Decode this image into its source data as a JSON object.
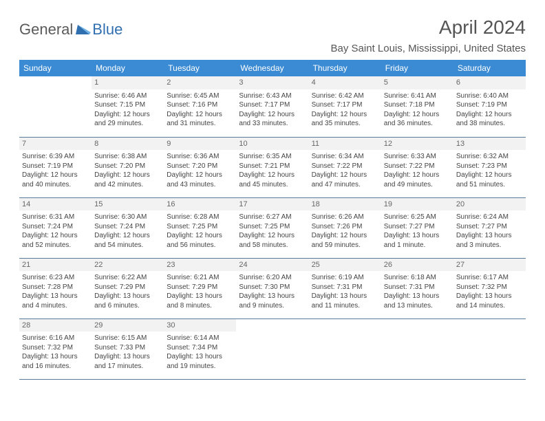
{
  "logo": {
    "part1": "General",
    "part2": "Blue"
  },
  "title": "April 2024",
  "location": "Bay Saint Louis, Mississippi, United States",
  "colors": {
    "header_bg": "#3b8bd4",
    "header_text": "#ffffff",
    "daynum_bg": "#f2f2f2",
    "cell_border": "#5a7a9a",
    "body_text": "#444444",
    "logo_gray": "#5a5a5a",
    "logo_blue": "#2f6fb0"
  },
  "weekdays": [
    "Sunday",
    "Monday",
    "Tuesday",
    "Wednesday",
    "Thursday",
    "Friday",
    "Saturday"
  ],
  "weeks": [
    [
      null,
      {
        "n": "1",
        "sr": "Sunrise: 6:46 AM",
        "ss": "Sunset: 7:15 PM",
        "d1": "Daylight: 12 hours",
        "d2": "and 29 minutes."
      },
      {
        "n": "2",
        "sr": "Sunrise: 6:45 AM",
        "ss": "Sunset: 7:16 PM",
        "d1": "Daylight: 12 hours",
        "d2": "and 31 minutes."
      },
      {
        "n": "3",
        "sr": "Sunrise: 6:43 AM",
        "ss": "Sunset: 7:17 PM",
        "d1": "Daylight: 12 hours",
        "d2": "and 33 minutes."
      },
      {
        "n": "4",
        "sr": "Sunrise: 6:42 AM",
        "ss": "Sunset: 7:17 PM",
        "d1": "Daylight: 12 hours",
        "d2": "and 35 minutes."
      },
      {
        "n": "5",
        "sr": "Sunrise: 6:41 AM",
        "ss": "Sunset: 7:18 PM",
        "d1": "Daylight: 12 hours",
        "d2": "and 36 minutes."
      },
      {
        "n": "6",
        "sr": "Sunrise: 6:40 AM",
        "ss": "Sunset: 7:19 PM",
        "d1": "Daylight: 12 hours",
        "d2": "and 38 minutes."
      }
    ],
    [
      {
        "n": "7",
        "sr": "Sunrise: 6:39 AM",
        "ss": "Sunset: 7:19 PM",
        "d1": "Daylight: 12 hours",
        "d2": "and 40 minutes."
      },
      {
        "n": "8",
        "sr": "Sunrise: 6:38 AM",
        "ss": "Sunset: 7:20 PM",
        "d1": "Daylight: 12 hours",
        "d2": "and 42 minutes."
      },
      {
        "n": "9",
        "sr": "Sunrise: 6:36 AM",
        "ss": "Sunset: 7:20 PM",
        "d1": "Daylight: 12 hours",
        "d2": "and 43 minutes."
      },
      {
        "n": "10",
        "sr": "Sunrise: 6:35 AM",
        "ss": "Sunset: 7:21 PM",
        "d1": "Daylight: 12 hours",
        "d2": "and 45 minutes."
      },
      {
        "n": "11",
        "sr": "Sunrise: 6:34 AM",
        "ss": "Sunset: 7:22 PM",
        "d1": "Daylight: 12 hours",
        "d2": "and 47 minutes."
      },
      {
        "n": "12",
        "sr": "Sunrise: 6:33 AM",
        "ss": "Sunset: 7:22 PM",
        "d1": "Daylight: 12 hours",
        "d2": "and 49 minutes."
      },
      {
        "n": "13",
        "sr": "Sunrise: 6:32 AM",
        "ss": "Sunset: 7:23 PM",
        "d1": "Daylight: 12 hours",
        "d2": "and 51 minutes."
      }
    ],
    [
      {
        "n": "14",
        "sr": "Sunrise: 6:31 AM",
        "ss": "Sunset: 7:24 PM",
        "d1": "Daylight: 12 hours",
        "d2": "and 52 minutes."
      },
      {
        "n": "15",
        "sr": "Sunrise: 6:30 AM",
        "ss": "Sunset: 7:24 PM",
        "d1": "Daylight: 12 hours",
        "d2": "and 54 minutes."
      },
      {
        "n": "16",
        "sr": "Sunrise: 6:28 AM",
        "ss": "Sunset: 7:25 PM",
        "d1": "Daylight: 12 hours",
        "d2": "and 56 minutes."
      },
      {
        "n": "17",
        "sr": "Sunrise: 6:27 AM",
        "ss": "Sunset: 7:25 PM",
        "d1": "Daylight: 12 hours",
        "d2": "and 58 minutes."
      },
      {
        "n": "18",
        "sr": "Sunrise: 6:26 AM",
        "ss": "Sunset: 7:26 PM",
        "d1": "Daylight: 12 hours",
        "d2": "and 59 minutes."
      },
      {
        "n": "19",
        "sr": "Sunrise: 6:25 AM",
        "ss": "Sunset: 7:27 PM",
        "d1": "Daylight: 13 hours",
        "d2": "and 1 minute."
      },
      {
        "n": "20",
        "sr": "Sunrise: 6:24 AM",
        "ss": "Sunset: 7:27 PM",
        "d1": "Daylight: 13 hours",
        "d2": "and 3 minutes."
      }
    ],
    [
      {
        "n": "21",
        "sr": "Sunrise: 6:23 AM",
        "ss": "Sunset: 7:28 PM",
        "d1": "Daylight: 13 hours",
        "d2": "and 4 minutes."
      },
      {
        "n": "22",
        "sr": "Sunrise: 6:22 AM",
        "ss": "Sunset: 7:29 PM",
        "d1": "Daylight: 13 hours",
        "d2": "and 6 minutes."
      },
      {
        "n": "23",
        "sr": "Sunrise: 6:21 AM",
        "ss": "Sunset: 7:29 PM",
        "d1": "Daylight: 13 hours",
        "d2": "and 8 minutes."
      },
      {
        "n": "24",
        "sr": "Sunrise: 6:20 AM",
        "ss": "Sunset: 7:30 PM",
        "d1": "Daylight: 13 hours",
        "d2": "and 9 minutes."
      },
      {
        "n": "25",
        "sr": "Sunrise: 6:19 AM",
        "ss": "Sunset: 7:31 PM",
        "d1": "Daylight: 13 hours",
        "d2": "and 11 minutes."
      },
      {
        "n": "26",
        "sr": "Sunrise: 6:18 AM",
        "ss": "Sunset: 7:31 PM",
        "d1": "Daylight: 13 hours",
        "d2": "and 13 minutes."
      },
      {
        "n": "27",
        "sr": "Sunrise: 6:17 AM",
        "ss": "Sunset: 7:32 PM",
        "d1": "Daylight: 13 hours",
        "d2": "and 14 minutes."
      }
    ],
    [
      {
        "n": "28",
        "sr": "Sunrise: 6:16 AM",
        "ss": "Sunset: 7:32 PM",
        "d1": "Daylight: 13 hours",
        "d2": "and 16 minutes."
      },
      {
        "n": "29",
        "sr": "Sunrise: 6:15 AM",
        "ss": "Sunset: 7:33 PM",
        "d1": "Daylight: 13 hours",
        "d2": "and 17 minutes."
      },
      {
        "n": "30",
        "sr": "Sunrise: 6:14 AM",
        "ss": "Sunset: 7:34 PM",
        "d1": "Daylight: 13 hours",
        "d2": "and 19 minutes."
      },
      null,
      null,
      null,
      null
    ]
  ]
}
